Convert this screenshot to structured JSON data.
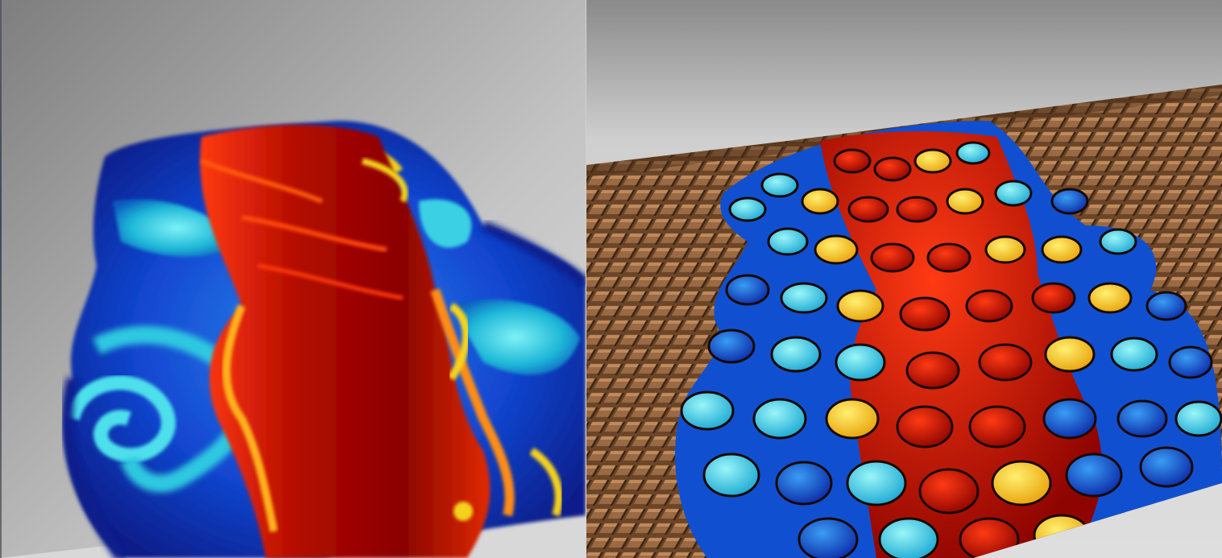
{
  "panels": [
    {
      "id": "left",
      "description_icon": "smooth-volume-render-icon"
    },
    {
      "id": "right",
      "description_icon": "voronoi-cell-render-icon"
    }
  ],
  "colors": {
    "background_top": "#8e8e8e",
    "background_bottom": "#d6d6d6",
    "deep_blue": "#0a2aa8",
    "blue": "#1460e0",
    "cyan": "#35d6e8",
    "yellow": "#f4d21a",
    "orange": "#ff7a10",
    "red": "#e01408",
    "dark_red": "#8e0400",
    "grid_brown": "#7a5236"
  }
}
